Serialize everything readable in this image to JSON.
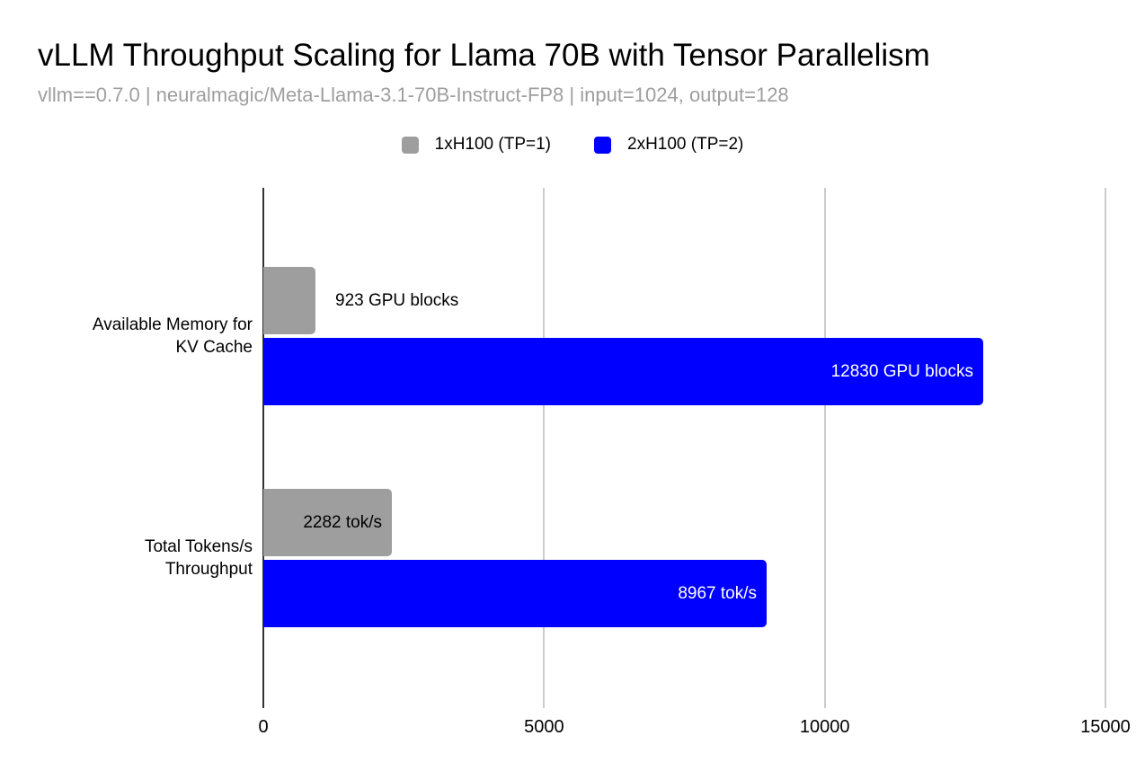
{
  "title": "vLLM Throughput Scaling for Llama 70B with Tensor Parallelism",
  "subtitle": "vllm==0.7.0 | neuralmagic/Meta-Llama-3.1-70B-Instruct-FP8 | input=1024, output=128",
  "colors": {
    "background": "#ffffff",
    "title_text": "#000000",
    "subtitle_text": "#9e9e9e",
    "axis_line": "#333333",
    "gridline": "#cccccc",
    "series_1": "#9e9e9e",
    "series_2": "#0000ff"
  },
  "chart_data": {
    "type": "bar",
    "orientation": "horizontal",
    "title": "vLLM Throughput Scaling for Llama 70B with Tensor Parallelism",
    "subtitle": "vllm==0.7.0 | neuralmagic/Meta-Llama-3.1-70B-Instruct-FP8 | input=1024, output=128",
    "legend_position": "top",
    "grid": true,
    "categories": [
      {
        "label": "Available Memory for KV Cache",
        "lines": [
          "Available Memory for",
          "KV Cache"
        ]
      },
      {
        "label": "Total Tokens/s Throughput",
        "lines": [
          "Total Tokens/s",
          "Throughput"
        ]
      }
    ],
    "series": [
      {
        "name": "1xH100 (TP=1)",
        "color": "#9e9e9e",
        "inside_label_color": "#000000",
        "values": [
          923,
          2282
        ],
        "data_labels": [
          "923 GPU blocks",
          "2282 tok/s"
        ]
      },
      {
        "name": "2xH100 (TP=2)",
        "color": "#0000ff",
        "inside_label_color": "#ffffff",
        "values": [
          12830,
          8967
        ],
        "data_labels": [
          "12830 GPU blocks",
          "8967 tok/s"
        ]
      }
    ],
    "x_axis": {
      "min": 0,
      "max": 15000,
      "ticks": [
        0,
        5000,
        10000,
        15000
      ],
      "tick_labels": [
        "0",
        "5000",
        "10000",
        "15000"
      ]
    }
  }
}
